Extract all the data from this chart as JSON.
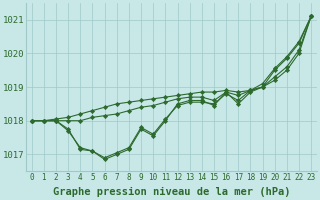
{
  "series": [
    [
      1018.0,
      1018.0,
      1018.0,
      1017.7,
      1017.2,
      1017.1,
      1016.85,
      1017.0,
      1017.15,
      1017.75,
      1017.55,
      1018.0,
      1018.5,
      1018.6,
      1018.6,
      1018.45,
      1018.85,
      1018.5,
      1018.85,
      1019.0,
      1019.5,
      1019.85,
      1020.3,
      1021.1
    ],
    [
      1018.0,
      1018.0,
      1018.05,
      1018.1,
      1018.2,
      1018.3,
      1018.4,
      1018.5,
      1018.55,
      1018.6,
      1018.65,
      1018.7,
      1018.75,
      1018.8,
      1018.85,
      1018.85,
      1018.9,
      1018.85,
      1018.9,
      1019.0,
      1019.2,
      1019.5,
      1020.0,
      1021.1
    ],
    [
      1018.0,
      1018.0,
      1018.0,
      1017.75,
      1017.15,
      1017.1,
      1016.9,
      1017.05,
      1017.2,
      1017.8,
      1017.6,
      1018.05,
      1018.45,
      1018.55,
      1018.55,
      1018.5,
      1018.8,
      1018.6,
      1018.9,
      1019.1,
      1019.55,
      1019.9,
      1020.35,
      1021.1
    ],
    [
      1018.0,
      1018.0,
      1018.0,
      1018.0,
      1018.0,
      1018.1,
      1018.15,
      1018.2,
      1018.3,
      1018.4,
      1018.45,
      1018.55,
      1018.65,
      1018.7,
      1018.7,
      1018.6,
      1018.85,
      1018.75,
      1018.9,
      1019.0,
      1019.3,
      1019.6,
      1020.1,
      1021.1
    ]
  ],
  "x": [
    0,
    1,
    2,
    3,
    4,
    5,
    6,
    7,
    8,
    9,
    10,
    11,
    12,
    13,
    14,
    15,
    16,
    17,
    18,
    19,
    20,
    21,
    22,
    23
  ],
  "ylim": [
    1016.5,
    1021.5
  ],
  "xlim": [
    -0.5,
    23.5
  ],
  "yticks": [
    1017,
    1018,
    1019,
    1020,
    1021
  ],
  "xticks": [
    0,
    1,
    2,
    3,
    4,
    5,
    6,
    7,
    8,
    9,
    10,
    11,
    12,
    13,
    14,
    15,
    16,
    17,
    18,
    19,
    20,
    21,
    22,
    23
  ],
  "line_color": "#2d6a2d",
  "marker_color": "#2d6a2d",
  "bg_color": "#c8e8e8",
  "grid_color": "#a0c8c8",
  "xlabel": "Graphe pression niveau de la mer (hPa)",
  "xlabel_fontsize": 7.5,
  "tick_fontsize": 5.5,
  "ytick_fontsize": 6.5,
  "fig_bg": "#c8e8e8",
  "linewidth": 0.8,
  "markersize": 2.2
}
